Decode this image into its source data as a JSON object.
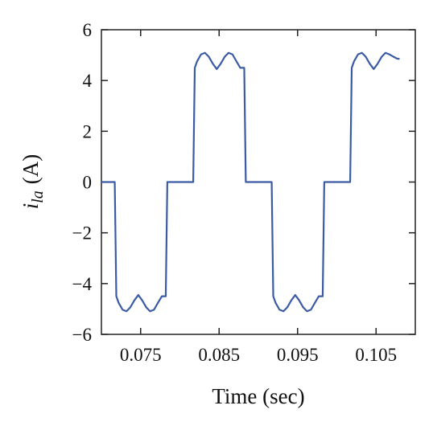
{
  "chart_data": {
    "type": "line",
    "xlabel": "Time (sec)",
    "ylabel_main": "i",
    "ylabel_sub": "la",
    "ylabel_unit": "(A)",
    "xlim": [
      0.07,
      0.11
    ],
    "ylim": [
      -6,
      6
    ],
    "xticks": [
      0.075,
      0.085,
      0.095,
      0.105
    ],
    "xtick_labels": [
      "0.075",
      "0.085",
      "0.095",
      "0.105"
    ],
    "yticks": [
      -6,
      -4,
      -2,
      0,
      2,
      4,
      6
    ],
    "ytick_labels": [
      "−6",
      "−4",
      "−2",
      "0",
      "2",
      "4",
      "6"
    ],
    "grid": false,
    "line_color": "#3b5ba5",
    "series": [
      {
        "x": [
          0.07,
          0.0717,
          0.0719,
          0.0722,
          0.0727,
          0.0732,
          0.0737,
          0.0742,
          0.0747,
          0.0752,
          0.0757,
          0.0762,
          0.0767,
          0.0772,
          0.0777,
          0.0782,
          0.0784,
          0.0817,
          0.0819,
          0.0822,
          0.0827,
          0.0832,
          0.0837,
          0.0842,
          0.0847,
          0.0852,
          0.0857,
          0.0862,
          0.0867,
          0.0872,
          0.0877,
          0.0882,
          0.0884,
          0.0917,
          0.0919,
          0.0922,
          0.0927,
          0.0932,
          0.0937,
          0.0942,
          0.0947,
          0.0952,
          0.0957,
          0.0962,
          0.0967,
          0.0972,
          0.0977,
          0.0982,
          0.0984,
          0.1017,
          0.1019,
          0.1022,
          0.1027,
          0.1032,
          0.1037,
          0.1042,
          0.1047,
          0.1052,
          0.1057,
          0.1062,
          0.1067,
          0.1072,
          0.1077,
          0.108
        ],
        "y": [
          0,
          0,
          -4.5,
          -4.76,
          -5.03,
          -5.09,
          -4.93,
          -4.66,
          -4.45,
          -4.66,
          -4.93,
          -5.09,
          -5.03,
          -4.76,
          -4.5,
          -4.5,
          0,
          0,
          4.5,
          4.76,
          5.03,
          5.09,
          4.93,
          4.66,
          4.45,
          4.66,
          4.93,
          5.09,
          5.03,
          4.76,
          4.5,
          4.5,
          0,
          0,
          -4.5,
          -4.76,
          -5.03,
          -5.09,
          -4.93,
          -4.66,
          -4.45,
          -4.66,
          -4.93,
          -5.09,
          -5.03,
          -4.76,
          -4.5,
          -4.5,
          0,
          0,
          4.5,
          4.76,
          5.03,
          5.09,
          4.93,
          4.66,
          4.45,
          4.66,
          4.93,
          5.09,
          5.03,
          4.94,
          4.86,
          4.85
        ]
      }
    ]
  }
}
